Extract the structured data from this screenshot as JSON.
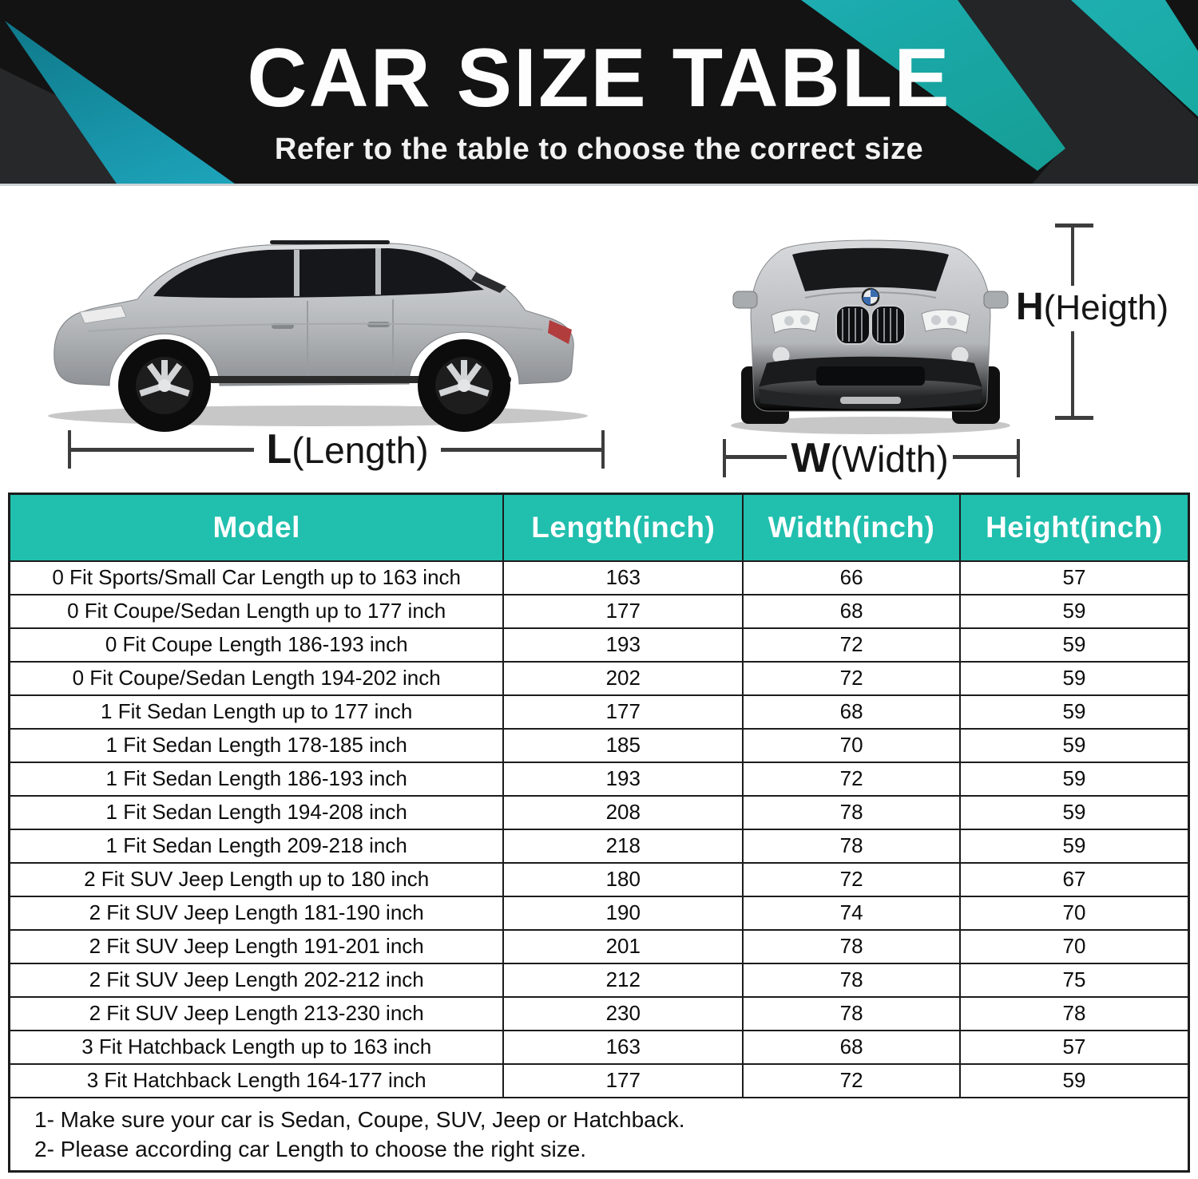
{
  "banner": {
    "title": "CAR SIZE TABLE",
    "subtitle": "Refer to the table to choose the correct size"
  },
  "diagram": {
    "length": {
      "letter": "L",
      "rest": "(Length)"
    },
    "width": {
      "letter": "W",
      "rest": "(Width)"
    },
    "height": {
      "letter": "H",
      "rest": "(Heigth)"
    }
  },
  "table": {
    "columns": [
      "Model",
      "Length(inch)",
      "Width(inch)",
      "Height(inch)"
    ],
    "rows": [
      {
        "model": "0 Fit Sports/Small Car Length up to 163 inch",
        "length": "163",
        "width": "66",
        "height": "57"
      },
      {
        "model": "0 Fit Coupe/Sedan Length up to 177 inch",
        "length": "177",
        "width": "68",
        "height": "59"
      },
      {
        "model": "0 Fit Coupe Length 186-193 inch",
        "length": "193",
        "width": "72",
        "height": "59"
      },
      {
        "model": "0 Fit Coupe/Sedan Length 194-202 inch",
        "length": "202",
        "width": "72",
        "height": "59"
      },
      {
        "model": "1 Fit Sedan Length up to 177 inch",
        "length": "177",
        "width": "68",
        "height": "59"
      },
      {
        "model": "1 Fit Sedan Length 178-185 inch",
        "length": "185",
        "width": "70",
        "height": "59"
      },
      {
        "model": "1 Fit Sedan Length 186-193 inch",
        "length": "193",
        "width": "72",
        "height": "59"
      },
      {
        "model": "1 Fit Sedan Length 194-208 inch",
        "length": "208",
        "width": "78",
        "height": "59"
      },
      {
        "model": "1 Fit Sedan Length 209-218 inch",
        "length": "218",
        "width": "78",
        "height": "59"
      },
      {
        "model": "2 Fit SUV Jeep Length up to 180 inch",
        "length": "180",
        "width": "72",
        "height": "67"
      },
      {
        "model": "2 Fit SUV Jeep Length 181-190 inch",
        "length": "190",
        "width": "74",
        "height": "70"
      },
      {
        "model": "2 Fit SUV Jeep Length 191-201 inch",
        "length": "201",
        "width": "78",
        "height": "70"
      },
      {
        "model": "2 Fit SUV Jeep Length 202-212 inch",
        "length": "212",
        "width": "78",
        "height": "75"
      },
      {
        "model": "2 Fit SUV Jeep Length 213-230 inch",
        "length": "230",
        "width": "78",
        "height": "78"
      },
      {
        "model": "3 Fit Hatchback Length up to 163 inch",
        "length": "163",
        "width": "68",
        "height": "57"
      },
      {
        "model": "3 Fit Hatchback Length 164-177 inch",
        "length": "177",
        "width": "72",
        "height": "59"
      }
    ]
  },
  "notes": [
    "1- Make sure your car is Sedan, Coupe, SUV, Jeep or Hatchback.",
    "2- Please according car Length to choose the right size."
  ],
  "colors": {
    "accent_teal": "#21bfae",
    "banner_black": "#131313",
    "teal_gradient_light": "#3bbfe0",
    "teal_gradient_dark": "#0d7484",
    "border_dark": "#1c1c1c"
  }
}
